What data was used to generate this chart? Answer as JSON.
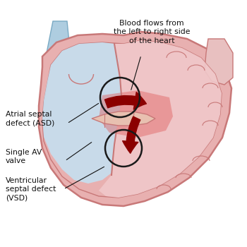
{
  "background_color": "#ffffff",
  "heart_wall_color": "#e8b0b0",
  "heart_wall_edge": "#c87878",
  "left_chamber_color": "#c5dff0",
  "right_chamber_color": "#f0c8ca",
  "right_chamber_dark": "#e8a8aa",
  "vessel_blue_color": "#aecde0",
  "vessel_blue_edge": "#7aaac4",
  "vessel_right_color": "#e8c0c0",
  "blood_dark": "#8b0000",
  "blood_mid": "#cc0000",
  "circle_color": "#1a1a1a",
  "text_color": "#111111",
  "line_color": "#111111",
  "septum_color": "#d09090",
  "wall_inner_color": "#dca0a0",
  "labels": {
    "asd": "Atrial septal\ndefect (ASD)",
    "single_av": "Single AV\nvalve",
    "vsd": "Ventricular\nseptal defect\n(VSD)",
    "blood_flow": "Blood flows from\nthe left to right side\nof the heart"
  },
  "figsize": [
    3.5,
    3.5
  ],
  "dpi": 100
}
